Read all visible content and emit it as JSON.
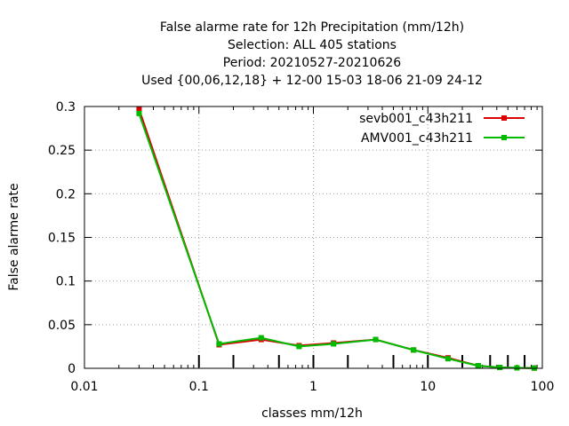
{
  "chart_data": {
    "type": "line",
    "title_lines": [
      "False alarme rate  for 12h Precipitation (mm/12h)",
      "Selection: ALL    405 stations",
      "Period: 20210527-20210626",
      "Used {00,06,12,18} + 12-00 15-03 18-06 21-09 24-12"
    ],
    "xlabel": "classes mm/12h",
    "ylabel": "False alarme rate",
    "x_scale": "log",
    "xlim": [
      0.01,
      100
    ],
    "ylim": [
      0,
      0.3
    ],
    "x_ticks": [
      0.01,
      0.1,
      1,
      10,
      100
    ],
    "x_tick_labels": [
      "0.01",
      "0.1",
      "1",
      "10",
      "100"
    ],
    "y_ticks": [
      0,
      0.05,
      0.1,
      0.15,
      0.2,
      0.25,
      0.3
    ],
    "y_tick_labels": [
      "0",
      "0.05",
      "0.1",
      "0.15",
      "0.2",
      "0.25",
      "0.3"
    ],
    "grid": true,
    "legend_position": "top-right",
    "class_thresholds": [
      0.1,
      0.2,
      0.5,
      1,
      2,
      5,
      10,
      20,
      35,
      50,
      70
    ],
    "series": [
      {
        "name": "sevb001_c43h211",
        "color": "#dd0000",
        "x": [
          0.03,
          0.15,
          0.35,
          0.75,
          1.5,
          3.5,
          7.5,
          15,
          27.5,
          42.5,
          60,
          85
        ],
        "y": [
          0.297,
          0.027,
          0.033,
          0.026,
          0.029,
          0.033,
          0.021,
          0.012,
          0.003,
          0.001,
          0.0005,
          0.0003
        ]
      },
      {
        "name": "AMV001_c43h211",
        "color": "#00bb00",
        "x": [
          0.03,
          0.15,
          0.35,
          0.75,
          1.5,
          3.5,
          7.5,
          15,
          27.5,
          42.5,
          60,
          85
        ],
        "y": [
          0.292,
          0.028,
          0.035,
          0.025,
          0.028,
          0.033,
          0.021,
          0.011,
          0.003,
          0.001,
          0.0005,
          0.0003
        ]
      }
    ]
  }
}
